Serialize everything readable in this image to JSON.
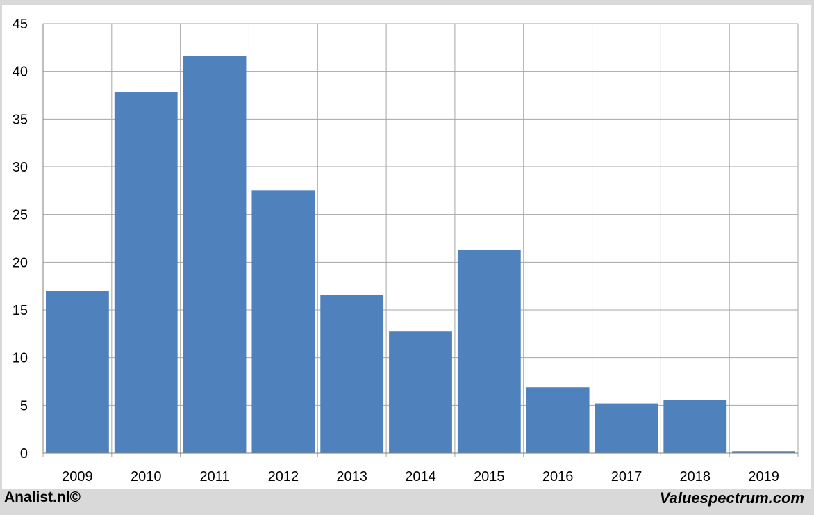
{
  "chart_data": {
    "type": "bar",
    "title": "",
    "xlabel": "",
    "ylabel": "",
    "categories": [
      "2009",
      "2010",
      "2011",
      "2012",
      "2013",
      "2014",
      "2015",
      "2016",
      "2017",
      "2018",
      "2019"
    ],
    "values": [
      17.0,
      37.8,
      41.6,
      27.5,
      16.6,
      12.8,
      21.3,
      6.9,
      5.2,
      5.6,
      0.2
    ],
    "ylim": [
      0,
      45
    ],
    "yticks": [
      0,
      5,
      10,
      15,
      20,
      25,
      30,
      35,
      40,
      45
    ],
    "grid": true,
    "bar_color": "#4f81bd",
    "grid_color": "#a6a6a6"
  },
  "footer": {
    "left": "Analist.nl©",
    "right": "Valuespectrum.com"
  }
}
